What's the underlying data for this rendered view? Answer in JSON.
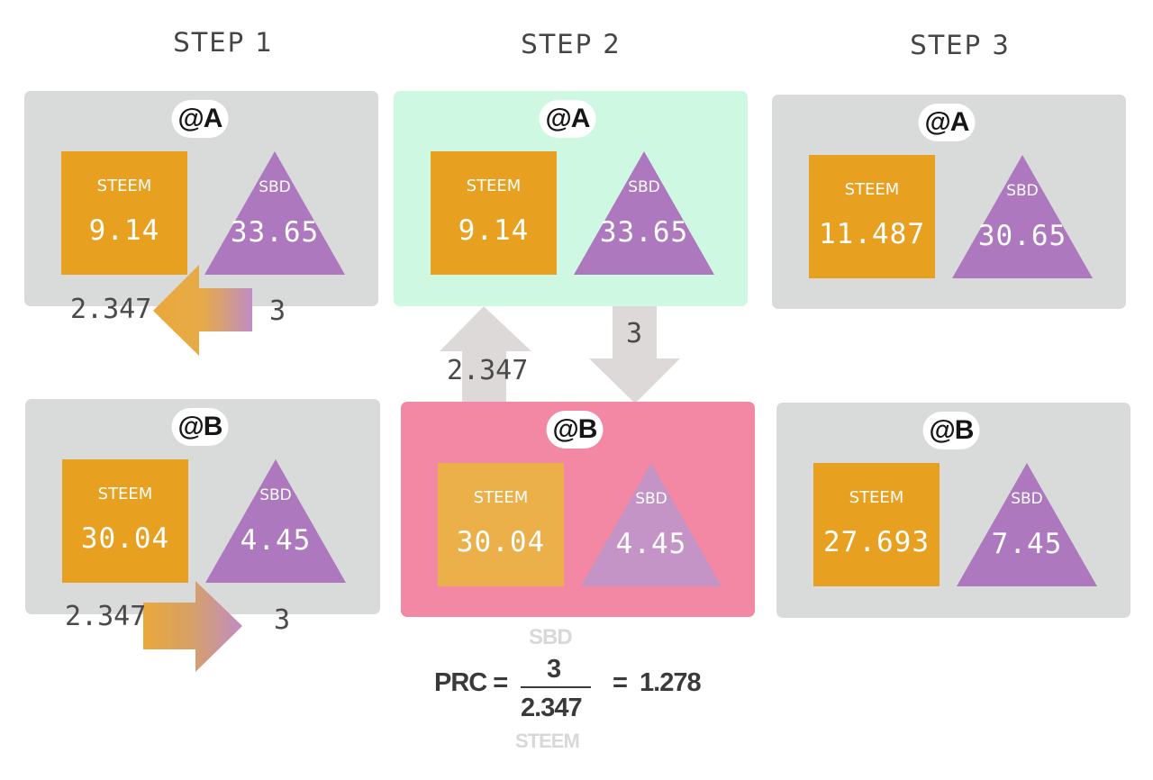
{
  "steps": [
    "STEP 1",
    "STEP 2",
    "STEP 3"
  ],
  "panels": {
    "s1a": {
      "account": "@A",
      "steem_label": "STEEM",
      "steem_value": "9.14",
      "sbd_label": "SBD",
      "sbd_value": "33.65"
    },
    "s1b": {
      "account": "@B",
      "steem_label": "STEEM",
      "steem_value": "30.04",
      "sbd_label": "SBD",
      "sbd_value": "4.45"
    },
    "s2a": {
      "account": "@A",
      "steem_label": "STEEM",
      "steem_value": "9.14",
      "sbd_label": "SBD",
      "sbd_value": "33.65"
    },
    "s2b": {
      "account": "@B",
      "steem_label": "STEEM",
      "steem_value": "30.04",
      "sbd_label": "SBD",
      "sbd_value": "4.45"
    },
    "s3a": {
      "account": "@A",
      "steem_label": "STEEM",
      "steem_value": "11.487",
      "sbd_label": "SBD",
      "sbd_value": "30.65"
    },
    "s3b": {
      "account": "@B",
      "steem_label": "STEEM",
      "steem_value": "27.693",
      "sbd_label": "SBD",
      "sbd_value": "7.45"
    }
  },
  "transfers": {
    "s1a_in": "2.347",
    "s1a_out": "3",
    "s1b_in": "2.347",
    "s1b_out": "3",
    "s2_up": "2.347",
    "s2_down": "3"
  },
  "formula": {
    "lhs": "PRC =",
    "numerator_unit": "SBD",
    "numerator": "3",
    "denominator": "2.347",
    "denominator_unit": "STEEM",
    "result": "=  1.278"
  },
  "colors": {
    "steem": "#e8a020",
    "sbd": "#b07ac0",
    "panel_gray": "#d9dbdb",
    "panel_mint": "#cff8e3",
    "panel_pink": "#f288a3",
    "arrow_gray": "#ddd9d9"
  }
}
